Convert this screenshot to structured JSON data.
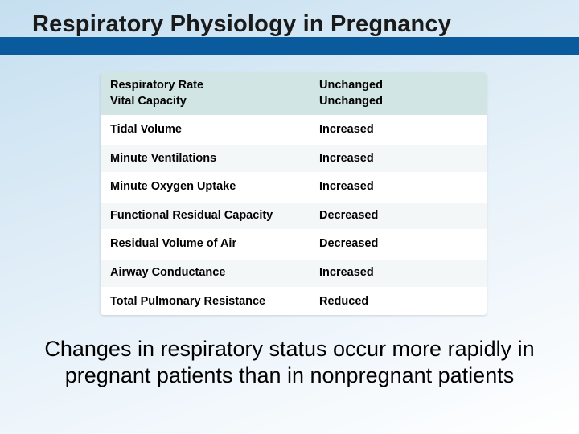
{
  "slide": {
    "title": "Respiratory Physiology in Pregnancy",
    "caption": "Changes in respiratory status occur more rapidly in pregnant patients than in nonpregnant patients"
  },
  "table": {
    "rows": [
      {
        "param": "Respiratory Rate\nVital Capacity",
        "change": "Unchanged\nUnchanged",
        "head": true
      },
      {
        "param": "Tidal Volume",
        "change": "Increased"
      },
      {
        "param": "Minute Ventilations",
        "change": "Increased"
      },
      {
        "param": "Minute Oxygen Uptake",
        "change": "Increased"
      },
      {
        "param": "Functional Residual Capacity",
        "change": "Decreased"
      },
      {
        "param": "Residual Volume of Air",
        "change": "Decreased"
      },
      {
        "param": "Airway Conductance",
        "change": "Increased"
      },
      {
        "param": "Total Pulmonary Resistance",
        "change": "Reduced"
      }
    ]
  },
  "style": {
    "header_band_color": "#0a5a9e",
    "head_row_bg": "#d2e5e5",
    "odd_row_bg": "#f4f7f8",
    "even_row_bg": "#ffffff",
    "title_fontsize": 29,
    "cell_fontsize": 14.5,
    "caption_fontsize": 27,
    "bg_gradient_from": "#c5dff0",
    "bg_gradient_to": "#ffffff"
  }
}
